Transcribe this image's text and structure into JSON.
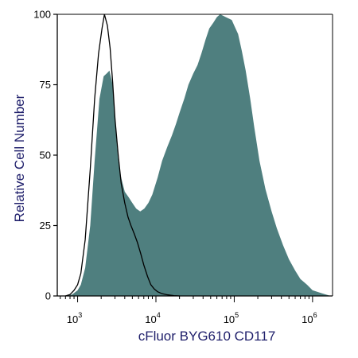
{
  "chart_data": {
    "type": "area",
    "title": "",
    "xlabel": "cFluor BYG610 CD117",
    "ylabel": "Relative Cell Number",
    "x_scale": "log",
    "xlim": [
      550,
      1800000
    ],
    "ylim": [
      0,
      100
    ],
    "y_ticks": [
      0,
      25,
      50,
      75,
      100
    ],
    "x_decades": [
      {
        "base": "10",
        "exp": "3",
        "value": 1000
      },
      {
        "base": "10",
        "exp": "4",
        "value": 10000
      },
      {
        "base": "10",
        "exp": "5",
        "value": 100000
      },
      {
        "base": "10",
        "exp": "6",
        "value": 1000000
      }
    ],
    "grid": false,
    "legend": "none",
    "colors": {
      "filled": "#4f7f7f",
      "outline": "#000000",
      "axis": "#000000",
      "title": "#1f1f6b"
    },
    "series": [
      {
        "style": "filled",
        "x": [
          700,
          850,
          1000,
          1100,
          1250,
          1450,
          1650,
          1900,
          2150,
          2350,
          2550,
          2800,
          3000,
          3300,
          3600,
          4000,
          4500,
          5000,
          5600,
          6300,
          7100,
          8000,
          9000,
          10500,
          12000,
          14000,
          16000,
          18000,
          20000,
          23000,
          26000,
          30000,
          34000,
          38000,
          43000,
          48000,
          54000,
          60000,
          66000,
          72000,
          78000,
          85000,
          93000,
          100000,
          112000,
          125000,
          140000,
          160000,
          180000,
          210000,
          250000,
          300000,
          350000,
          420000,
          500000,
          600000,
          700000,
          850000,
          1000000,
          1300000,
          1700000
        ],
        "y": [
          0,
          0.5,
          2,
          4,
          10,
          25,
          48,
          70,
          78,
          79,
          80,
          75,
          62,
          48,
          42,
          37,
          35,
          33,
          31,
          30,
          31,
          33,
          36,
          42,
          48,
          53,
          57,
          61,
          65,
          70,
          75,
          79,
          82,
          86,
          91,
          95,
          97,
          99,
          100,
          99.5,
          99,
          98.5,
          98,
          96,
          93,
          87,
          80,
          70,
          60,
          48,
          38,
          30,
          24,
          18,
          13,
          9,
          6,
          4,
          2,
          1,
          0
        ]
      },
      {
        "style": "outline",
        "x": [
          700,
          800,
          900,
          1000,
          1100,
          1250,
          1450,
          1650,
          1850,
          2050,
          2200,
          2400,
          2600,
          2800,
          3000,
          3300,
          3600,
          4000,
          4400,
          4800,
          5300,
          5800,
          6400,
          7000,
          7800,
          8600,
          9500,
          10500,
          12000,
          14000,
          17000,
          20000
        ],
        "y": [
          0,
          0.5,
          2,
          4,
          8,
          20,
          45,
          70,
          86,
          95,
          100,
          96,
          88,
          76,
          63,
          50,
          40,
          33,
          28,
          25,
          22,
          19,
          15,
          11,
          7,
          4,
          2.5,
          1.5,
          0.8,
          0.4,
          0.1,
          0
        ]
      }
    ]
  }
}
